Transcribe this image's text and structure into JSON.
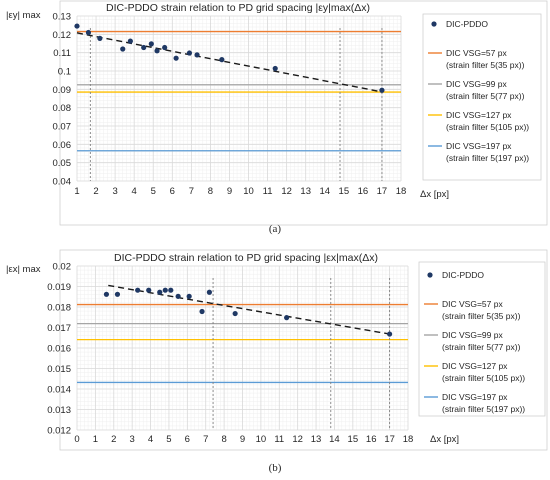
{
  "chart_data": [
    {
      "type": "scatter",
      "title": "DIC-PDDO strain relation to PD grid spacing |εy|max(Δx)",
      "panel_label": "(a)",
      "ylabel": "|εy| max",
      "xlabel": "Δx [px]",
      "xlim": [
        1,
        18
      ],
      "ylim": [
        0.04,
        0.13
      ],
      "x_ticks": [
        1,
        2,
        3,
        4,
        5,
        6,
        7,
        8,
        9,
        10,
        11,
        12,
        13,
        14,
        15,
        16,
        17,
        18
      ],
      "y_ticks": [
        0.04,
        0.05,
        0.06,
        0.07,
        0.08,
        0.09,
        0.1,
        0.11,
        0.12,
        0.13
      ],
      "y_tick_labels": [
        "0.04",
        "0.05",
        "0.06",
        "0.07",
        "0.08",
        "0.09",
        "0.1",
        "0.11",
        "0.12",
        "0.13"
      ],
      "grid": true,
      "legend_position": "right",
      "series": [
        {
          "name": "DIC-PDDO",
          "kind": "scatter",
          "color": "#1f3864",
          "x": [
            1,
            1.6,
            2.2,
            3.4,
            3.8,
            4.5,
            4.9,
            5.2,
            5.6,
            6.2,
            6.9,
            7.3,
            8.6,
            11.4,
            17
          ],
          "y": [
            0.1245,
            0.121,
            0.1178,
            0.112,
            0.1163,
            0.1128,
            0.1148,
            0.111,
            0.1128,
            0.107,
            0.1098,
            0.1088,
            0.1062,
            0.1014,
            0.0895
          ]
        },
        {
          "name": "DIC VSG=57 px",
          "sublabel": "(strain filter 5(35 px))",
          "kind": "hline",
          "color": "#ed7d31",
          "value": 0.1215
        },
        {
          "name": "DIC VSG=99 px",
          "sublabel": "(strain filter 5(77 px))",
          "kind": "hline",
          "color": "#a5a5a5",
          "value": 0.0925
        },
        {
          "name": "DIC VSG=127 px",
          "sublabel": "(strain filter 5(105 px))",
          "kind": "hline",
          "color": "#ffc000",
          "value": 0.0885
        },
        {
          "name": "DIC VSG=197 px",
          "sublabel": "(strain filter 5(197 px))",
          "kind": "hline",
          "color": "#5b9bd5",
          "value": 0.0565
        }
      ],
      "trendline": {
        "x": [
          1,
          17
        ],
        "y": [
          0.1208,
          0.0886
        ],
        "color": "#1a1a1a"
      },
      "dropline_x": [
        1.7,
        14.8,
        17
      ]
    },
    {
      "type": "scatter",
      "title": "DIC-PDDO strain relation to PD grid spacing |εx|max(Δx)",
      "panel_label": "(b)",
      "ylabel": "|εx| max",
      "xlabel": "Δx [px]",
      "xlim": [
        0,
        18
      ],
      "ylim": [
        0.012,
        0.02
      ],
      "x_ticks": [
        0,
        1,
        2,
        3,
        4,
        5,
        6,
        7,
        8,
        9,
        10,
        11,
        12,
        13,
        14,
        15,
        16,
        17,
        18
      ],
      "y_ticks": [
        0.012,
        0.013,
        0.014,
        0.015,
        0.016,
        0.017,
        0.018,
        0.019,
        0.02
      ],
      "y_tick_labels": [
        "0.012",
        "0.013",
        "0.014",
        "0.015",
        "0.016",
        "0.017",
        "0.018",
        "0.019",
        "0.02"
      ],
      "grid": true,
      "legend_position": "right",
      "series": [
        {
          "name": "DIC-PDDO",
          "kind": "scatter",
          "color": "#1f3864",
          "x": [
            1.6,
            2.2,
            3.3,
            3.9,
            4.5,
            4.8,
            5.1,
            5.5,
            6.1,
            6.8,
            7.2,
            8.6,
            11.4,
            17
          ],
          "y": [
            0.01862,
            0.01862,
            0.01882,
            0.01882,
            0.01872,
            0.01882,
            0.01882,
            0.01852,
            0.01852,
            0.01778,
            0.01872,
            0.01768,
            0.01748,
            0.01668
          ]
        },
        {
          "name": "DIC VSG=57 px",
          "sublabel": "(strain filter 5(35 px))",
          "kind": "hline",
          "color": "#ed7d31",
          "value": 0.01812
        },
        {
          "name": "DIC VSG=99 px",
          "sublabel": "(strain filter 5(77 px))",
          "kind": "hline",
          "color": "#a5a5a5",
          "value": 0.01719
        },
        {
          "name": "DIC VSG=127 px",
          "sublabel": "(strain filter 5(105 px))",
          "kind": "hline",
          "color": "#ffc000",
          "value": 0.01641
        },
        {
          "name": "DIC VSG=197 px",
          "sublabel": "(strain filter 5(197 px))",
          "kind": "hline",
          "color": "#5b9bd5",
          "value": 0.01432
        }
      ],
      "trendline": {
        "x": [
          1.7,
          17
        ],
        "y": [
          0.01905,
          0.01668
        ],
        "color": "#1a1a1a"
      },
      "dropline_x": [
        7.4,
        13.8,
        17
      ]
    }
  ]
}
